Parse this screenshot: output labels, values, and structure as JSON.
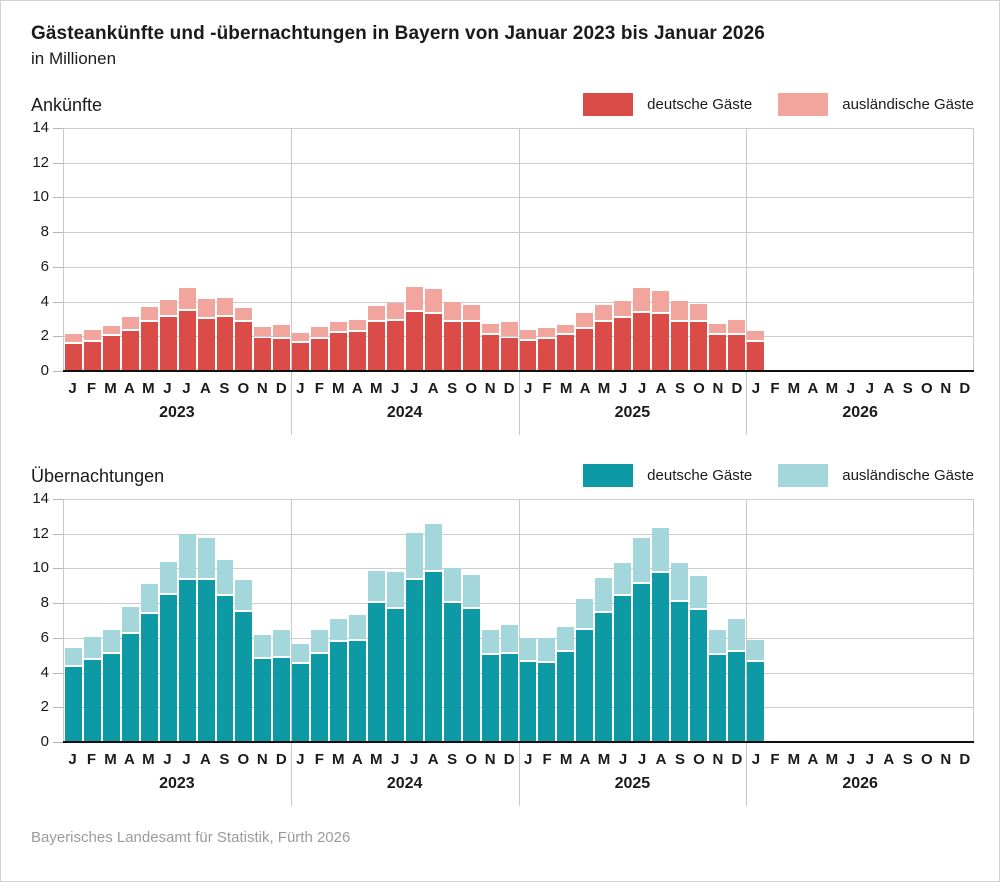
{
  "header": {
    "title": "Gästeankünfte und -übernachtungen in Bayern von Januar 2023 bis Januar 2026",
    "subtitle": "in Millionen"
  },
  "footer": {
    "source": "Bayerisches Landesamt für Statistik, Fürth 2026"
  },
  "axis": {
    "y_ticks": [
      0,
      2,
      4,
      6,
      8,
      10,
      12,
      14
    ],
    "month_letters": [
      "J",
      "F",
      "M",
      "A",
      "M",
      "J",
      "J",
      "A",
      "S",
      "O",
      "N",
      "D"
    ],
    "years": [
      "2023",
      "2024",
      "2025",
      "2026"
    ],
    "months_per_year": 12
  },
  "colors": {
    "arrivals_domestic": "#DB4B47",
    "arrivals_foreign": "#F2A59C",
    "nights_domestic": "#0D9AA5",
    "nights_foreign": "#A4D7DC",
    "gridline": "#cccccc",
    "zero_axis": "#111111",
    "footer_text": "#9b9b9b"
  },
  "chart_data": [
    {
      "type": "bar",
      "id": "ankuenfte",
      "title": "Ankünfte",
      "stacked": true,
      "unit": "Millionen",
      "ylim": [
        0,
        14
      ],
      "grid": true,
      "legend_position": "top-right",
      "legend": [
        {
          "label": "deutsche Gäste",
          "color": "#DB4B47"
        },
        {
          "label": "ausländische Gäste",
          "color": "#F2A59C"
        }
      ],
      "x": [
        "Jan 2023",
        "Feb 2023",
        "Mär 2023",
        "Apr 2023",
        "Mai 2023",
        "Jun 2023",
        "Jul 2023",
        "Aug 2023",
        "Sep 2023",
        "Okt 2023",
        "Nov 2023",
        "Dez 2023",
        "Jan 2024",
        "Feb 2024",
        "Mär 2024",
        "Apr 2024",
        "Mai 2024",
        "Jun 2024",
        "Jul 2024",
        "Aug 2024",
        "Sep 2024",
        "Okt 2024",
        "Nov 2024",
        "Dez 2024",
        "Jan 2025",
        "Feb 2025",
        "Mär 2025",
        "Apr 2025",
        "Mai 2025",
        "Jun 2025",
        "Jul 2025",
        "Aug 2025",
        "Sep 2025",
        "Okt 2025",
        "Nov 2025",
        "Dez 2025",
        "Jan 2026"
      ],
      "series": [
        {
          "name": "deutsche Gäste",
          "values": [
            1.55,
            1.7,
            2.0,
            2.3,
            2.85,
            3.1,
            3.45,
            3.0,
            3.1,
            2.8,
            1.9,
            1.85,
            1.6,
            1.85,
            2.2,
            2.25,
            2.8,
            2.9,
            3.4,
            3.3,
            2.85,
            2.8,
            2.05,
            1.9,
            1.75,
            1.85,
            2.05,
            2.4,
            2.85,
            3.05,
            3.35,
            3.3,
            2.85,
            2.8,
            2.1,
            2.05,
            1.7
          ]
        },
        {
          "name": "ausländische Gäste",
          "values": [
            0.45,
            0.55,
            0.5,
            0.7,
            0.7,
            0.9,
            1.2,
            1.05,
            1.0,
            0.7,
            0.55,
            0.7,
            0.5,
            0.55,
            0.5,
            0.6,
            0.85,
            0.9,
            1.35,
            1.3,
            1.0,
            0.9,
            0.55,
            0.8,
            0.5,
            0.5,
            0.5,
            0.8,
            0.85,
            0.85,
            1.3,
            1.2,
            1.05,
            0.95,
            0.5,
            0.75,
            0.5
          ]
        }
      ]
    },
    {
      "type": "bar",
      "id": "uebernachtungen",
      "title": "Übernachtungen",
      "stacked": true,
      "unit": "Millionen",
      "ylim": [
        0,
        14
      ],
      "grid": true,
      "legend_position": "top-right",
      "legend": [
        {
          "label": "deutsche Gäste",
          "color": "#0D9AA5"
        },
        {
          "label": "ausländische Gäste",
          "color": "#A4D7DC"
        }
      ],
      "x": [
        "Jan 2023",
        "Feb 2023",
        "Mär 2023",
        "Apr 2023",
        "Mai 2023",
        "Jun 2023",
        "Jul 2023",
        "Aug 2023",
        "Sep 2023",
        "Okt 2023",
        "Nov 2023",
        "Dez 2023",
        "Jan 2024",
        "Feb 2024",
        "Mär 2024",
        "Apr 2024",
        "Mai 2024",
        "Jun 2024",
        "Jul 2024",
        "Aug 2024",
        "Sep 2024",
        "Okt 2024",
        "Nov 2024",
        "Dez 2024",
        "Jan 2025",
        "Feb 2025",
        "Mär 2025",
        "Apr 2025",
        "Mai 2025",
        "Jun 2025",
        "Jul 2025",
        "Aug 2025",
        "Sep 2025",
        "Okt 2025",
        "Nov 2025",
        "Dez 2025",
        "Jan 2026"
      ],
      "series": [
        {
          "name": "deutsche Gäste",
          "values": [
            4.35,
            4.75,
            5.1,
            6.2,
            7.4,
            8.45,
            9.35,
            9.35,
            8.4,
            7.5,
            4.8,
            4.85,
            4.5,
            5.05,
            5.75,
            5.8,
            8.0,
            7.65,
            9.35,
            9.8,
            8.0,
            7.65,
            5.0,
            5.05,
            4.6,
            4.55,
            5.2,
            6.45,
            7.45,
            8.4,
            9.1,
            9.75,
            8.05,
            7.6,
            5.0,
            5.2,
            4.6
          ]
        },
        {
          "name": "ausländische Gäste",
          "values": [
            0.95,
            1.2,
            1.25,
            1.45,
            1.6,
            1.8,
            2.5,
            2.3,
            1.95,
            1.7,
            1.25,
            1.5,
            1.05,
            1.3,
            1.25,
            1.4,
            1.75,
            2.05,
            2.55,
            2.65,
            1.9,
            1.85,
            1.35,
            1.6,
            1.3,
            1.3,
            1.3,
            1.65,
            1.9,
            1.8,
            2.55,
            2.45,
            2.15,
            1.85,
            1.35,
            1.75,
            1.15
          ]
        }
      ]
    }
  ]
}
